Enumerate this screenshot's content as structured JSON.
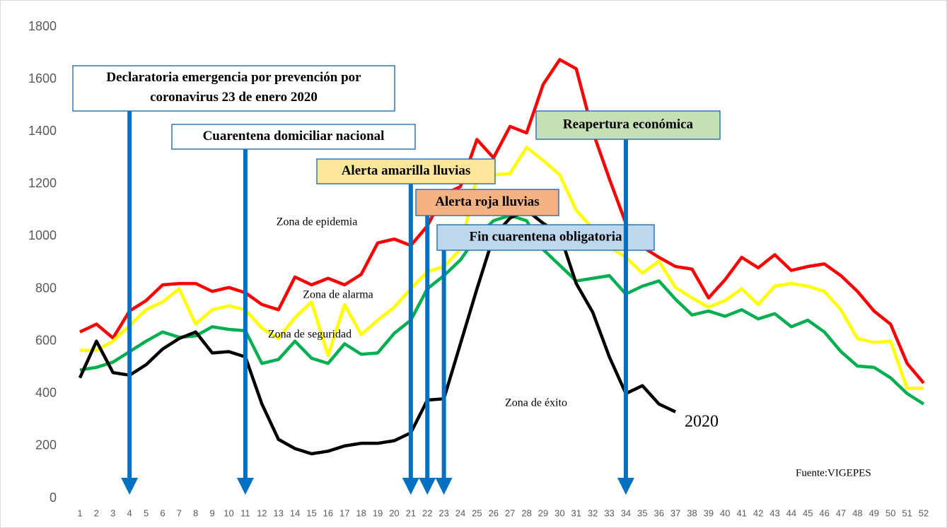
{
  "chart_data": {
    "type": "line",
    "categories": [
      "1",
      "2",
      "3",
      "4",
      "5",
      "6",
      "7",
      "8",
      "9",
      "10",
      "11",
      "12",
      "13",
      "14",
      "15",
      "16",
      "17",
      "18",
      "19",
      "20",
      "21",
      "22",
      "23",
      "24",
      "25",
      "26",
      "27",
      "28",
      "29",
      "30",
      "31",
      "32",
      "33",
      "34",
      "35",
      "36",
      "37",
      "38",
      "39",
      "40",
      "41",
      "42",
      "43",
      "44",
      "45",
      "46",
      "47",
      "48",
      "49",
      "50",
      "51",
      "52"
    ],
    "series": [
      {
        "name": "Zona de epidemia",
        "color": "#ff0000",
        "values": [
          635,
          665,
          612,
          715,
          755,
          815,
          820,
          820,
          790,
          805,
          785,
          740,
          720,
          845,
          815,
          840,
          815,
          855,
          975,
          990,
          965,
          1040,
          1160,
          1190,
          1370,
          1300,
          1420,
          1395,
          1580,
          1675,
          1640,
          1400,
          1220,
          1050,
          960,
          920,
          885,
          875,
          765,
          835,
          920,
          880,
          930,
          870,
          885,
          895,
          850,
          790,
          715,
          665,
          515,
          440
        ]
      },
      {
        "name": "Zona de alarma",
        "color": "#ffff00",
        "values": [
          565,
          565,
          600,
          660,
          720,
          750,
          800,
          665,
          720,
          735,
          720,
          650,
          610,
          690,
          750,
          545,
          740,
          625,
          680,
          730,
          800,
          865,
          885,
          950,
          1230,
          1235,
          1240,
          1340,
          1290,
          1235,
          1100,
          1030,
          960,
          920,
          860,
          905,
          805,
          765,
          730,
          755,
          800,
          740,
          810,
          820,
          810,
          790,
          720,
          610,
          595,
          600,
          420,
          420
        ]
      },
      {
        "name": "Zona de seguridad",
        "color": "#00b050",
        "values": [
          490,
          500,
          520,
          560,
          600,
          635,
          615,
          620,
          655,
          645,
          640,
          515,
          530,
          600,
          535,
          515,
          590,
          550,
          555,
          630,
          680,
          800,
          850,
          910,
          1000,
          1060,
          1080,
          1060,
          950,
          890,
          830,
          840,
          850,
          780,
          810,
          830,
          760,
          700,
          715,
          695,
          720,
          685,
          705,
          655,
          680,
          635,
          560,
          505,
          500,
          460,
          400,
          360
        ]
      },
      {
        "name": "Zona de éxito",
        "color": "#000000",
        "values": [
          460,
          600,
          480,
          470,
          510,
          570,
          610,
          635,
          555,
          560,
          540,
          360,
          225,
          190,
          170,
          180,
          200,
          210,
          210,
          220,
          250,
          375,
          380,
          590,
          800,
          1000,
          1070,
          1100,
          1050,
          1010,
          820,
          710,
          540,
          400,
          430,
          360,
          330,
          null,
          null,
          null,
          null,
          null,
          null,
          null,
          null,
          null,
          null,
          null,
          null,
          null,
          null,
          null
        ]
      }
    ],
    "series_label": "2020",
    "ylim": [
      0,
      1800
    ],
    "yticks": [
      0,
      200,
      400,
      600,
      800,
      1000,
      1200,
      1400,
      1600,
      1800
    ],
    "annotations": [
      {
        "text": "Declaratoria emergencia por prevención por coronavirus 23 de enero 2020",
        "week": 4,
        "fill": "#ffffff"
      },
      {
        "text": "Cuarentena domiciliar nacional",
        "week": 11,
        "fill": "#ffffff"
      },
      {
        "text": "Alerta amarilla lluvias",
        "week": 21,
        "fill": "#ffe699"
      },
      {
        "text": "Alerta roja lluvias",
        "week": 22,
        "fill": "#f4b183"
      },
      {
        "text": "Fin cuarentena obligatoria",
        "week": 23,
        "fill": "#bdd7ee"
      },
      {
        "text": "Reapertura económica",
        "week": 34,
        "fill": "#c5e0b4"
      }
    ],
    "source": "Fuente:VIGEPES"
  }
}
